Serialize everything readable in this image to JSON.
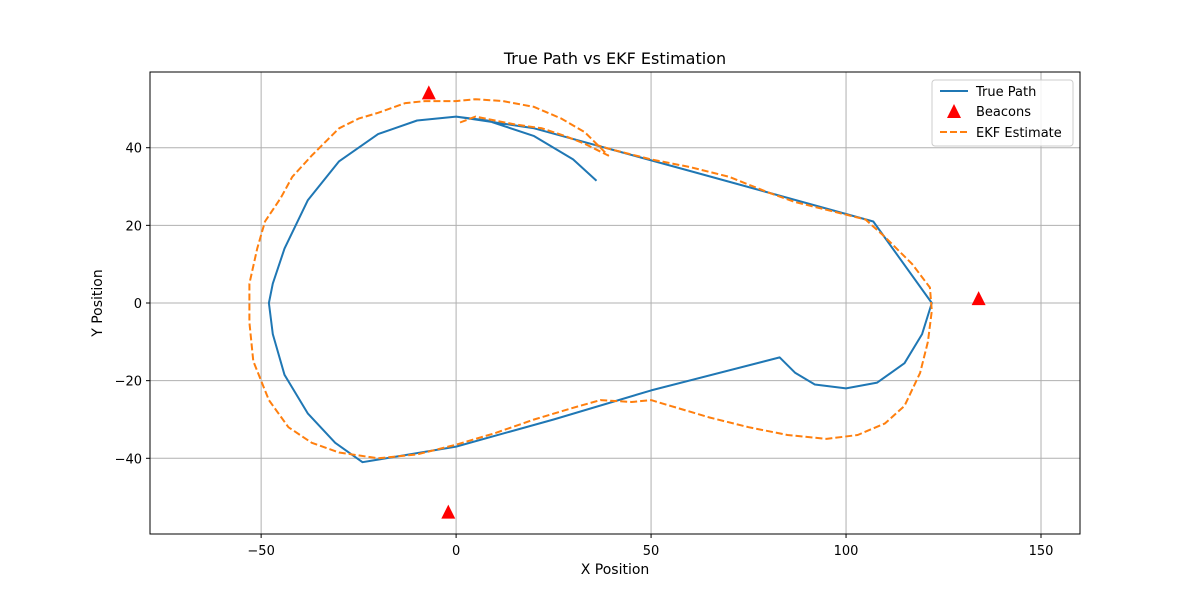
{
  "chart_data": {
    "type": "line",
    "title": "True Path vs EKF Estimation",
    "xlabel": "X Position",
    "ylabel": "Y Position",
    "xlim": [
      -78.5,
      160
    ],
    "ylim": [
      -59.5,
      59.5
    ],
    "xticks": [
      -50,
      0,
      50,
      100,
      150
    ],
    "yticks": [
      -40,
      -20,
      0,
      20,
      40
    ],
    "xtick_labels": [
      "−50",
      "0",
      "50",
      "100",
      "150"
    ],
    "ytick_labels": [
      "−40",
      "−20",
      "0",
      "20",
      "40"
    ],
    "grid": true,
    "legend_position": "top-right",
    "series": [
      {
        "name": "True Path",
        "style": "solid",
        "color": "#1f77b4",
        "points": [
          [
            36,
            31.5
          ],
          [
            30,
            37
          ],
          [
            20,
            43
          ],
          [
            8,
            47
          ],
          [
            0,
            48
          ],
          [
            -10,
            47
          ],
          [
            -20,
            43.5
          ],
          [
            -30,
            36.5
          ],
          [
            -38,
            26.5
          ],
          [
            -44,
            14
          ],
          [
            -47,
            5
          ],
          [
            -48,
            0
          ],
          [
            -47,
            -8
          ],
          [
            -44,
            -18.5
          ],
          [
            -38,
            -28.5
          ],
          [
            -31,
            -36
          ],
          [
            -24,
            -41
          ],
          [
            0,
            -37
          ],
          [
            25,
            -30
          ],
          [
            50,
            -22.5
          ],
          [
            83,
            -14
          ],
          [
            87,
            -18
          ],
          [
            92,
            -21
          ],
          [
            100,
            -22
          ],
          [
            108,
            -20.5
          ],
          [
            115,
            -15.5
          ],
          [
            119.5,
            -8
          ],
          [
            122,
            0
          ],
          [
            107,
            21
          ],
          [
            60,
            34
          ],
          [
            20,
            45
          ],
          [
            0,
            48
          ]
        ]
      },
      {
        "name": "EKF Estimate",
        "style": "dashed",
        "color": "#ff7f0e",
        "points": [
          [
            1,
            46.5
          ],
          [
            5,
            48
          ],
          [
            10,
            47
          ],
          [
            15,
            46
          ],
          [
            22,
            45
          ],
          [
            28,
            43
          ],
          [
            33,
            41
          ],
          [
            39,
            38
          ],
          [
            36,
            41
          ],
          [
            33,
            44
          ],
          [
            27,
            47.5
          ],
          [
            20,
            50.5
          ],
          [
            12,
            52
          ],
          [
            5,
            52.5
          ],
          [
            0,
            52
          ],
          [
            -5,
            52
          ],
          [
            -8,
            52
          ],
          [
            -13,
            51.5
          ],
          [
            -20,
            49
          ],
          [
            -25,
            47.5
          ],
          [
            -30,
            45
          ],
          [
            -33,
            42
          ],
          [
            -37,
            38
          ],
          [
            -42,
            32.5
          ],
          [
            -45,
            27
          ],
          [
            -49,
            21
          ],
          [
            -51,
            14
          ],
          [
            -53,
            5
          ],
          [
            -53,
            -5
          ],
          [
            -52,
            -15
          ],
          [
            -48,
            -25
          ],
          [
            -43,
            -32
          ],
          [
            -37,
            -36
          ],
          [
            -30,
            -38.5
          ],
          [
            -20,
            -40
          ],
          [
            -10,
            -39
          ],
          [
            0,
            -36.5
          ],
          [
            10,
            -33.5
          ],
          [
            20,
            -30
          ],
          [
            30,
            -27
          ],
          [
            37,
            -25
          ],
          [
            45,
            -25.5
          ],
          [
            50,
            -25
          ],
          [
            55,
            -26.5
          ],
          [
            65,
            -29.5
          ],
          [
            75,
            -32
          ],
          [
            85,
            -34
          ],
          [
            95,
            -35
          ],
          [
            103,
            -34
          ],
          [
            110,
            -31
          ],
          [
            115,
            -26.5
          ],
          [
            119,
            -18
          ],
          [
            121,
            -10
          ],
          [
            122,
            -2
          ],
          [
            121.5,
            4
          ],
          [
            117,
            10
          ],
          [
            110,
            17
          ],
          [
            105,
            21.5
          ],
          [
            95,
            24
          ],
          [
            87,
            26
          ],
          [
            80,
            28.5
          ],
          [
            70,
            32.5
          ],
          [
            60,
            35
          ],
          [
            50,
            37
          ],
          [
            40,
            39.5
          ],
          [
            35,
            41
          ]
        ]
      }
    ],
    "markers": {
      "name": "Beacons",
      "shape": "triangle",
      "color": "#ff0000",
      "points": [
        [
          -7,
          54
        ],
        [
          -2,
          -54
        ],
        [
          134,
          1
        ]
      ]
    }
  }
}
